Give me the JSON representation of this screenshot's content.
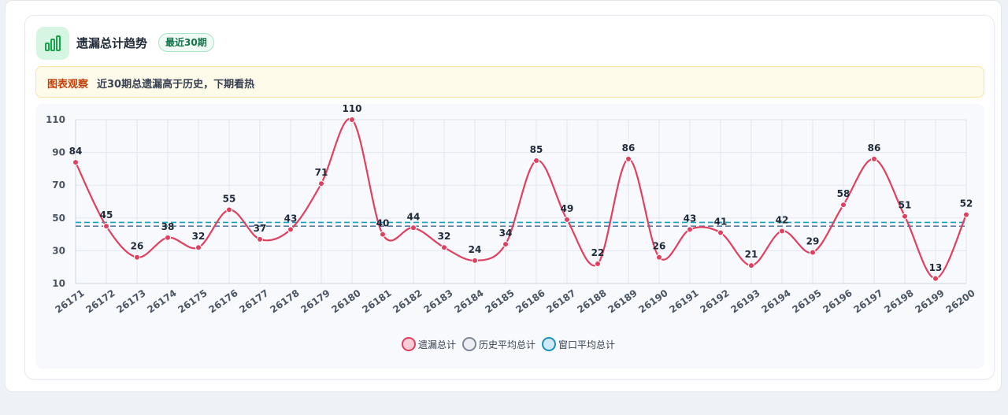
{
  "card": {
    "title": "遗漏总计趋势",
    "badge": "最近30期"
  },
  "insight": {
    "tag": "图表观察",
    "text": "近30期总遗漏高于历史，下期看热"
  },
  "legend": [
    {
      "label": "遗漏总计",
      "fill": "#f8cdd6",
      "stroke": "#e0405f"
    },
    {
      "label": "历史平均总计",
      "fill": "#eceef3",
      "stroke": "#7d8595"
    },
    {
      "label": "窗口平均总计",
      "fill": "#cfeaf6",
      "stroke": "#1a8fb8"
    }
  ],
  "colors": {
    "series": "#e0405f",
    "history_avg": "#5b7a99",
    "window_avg": "#1a9fbf",
    "grid": "#e2e8f0",
    "tick": "#4b5563",
    "header_icon": "#16a34a"
  },
  "chart_data": {
    "type": "line",
    "x": [
      "26171",
      "26172",
      "26173",
      "26174",
      "26175",
      "26176",
      "26177",
      "26178",
      "26179",
      "26180",
      "26181",
      "26182",
      "26183",
      "26184",
      "26185",
      "26186",
      "26187",
      "26188",
      "26189",
      "26190",
      "26191",
      "26192",
      "26193",
      "26194",
      "26195",
      "26196",
      "26197",
      "26198",
      "26199",
      "26200"
    ],
    "series": [
      {
        "name": "遗漏总计",
        "values": [
          84,
          45,
          26,
          38,
          32,
          55,
          37,
          43,
          71,
          110,
          40,
          44,
          32,
          24,
          34,
          85,
          49,
          22,
          86,
          26,
          43,
          41,
          21,
          42,
          29,
          58,
          86,
          51,
          13,
          52
        ],
        "smooth": true,
        "data_labels": true
      }
    ],
    "reference_lines": [
      {
        "name": "历史平均总计",
        "value": 45,
        "style": "dashed"
      },
      {
        "name": "窗口平均总计",
        "value": 47.3,
        "style": "dashed"
      }
    ],
    "y_ticks": [
      10,
      30,
      50,
      70,
      90,
      110
    ],
    "ylim": [
      10,
      110
    ],
    "grid": true,
    "legend_position": "bottom-center"
  }
}
